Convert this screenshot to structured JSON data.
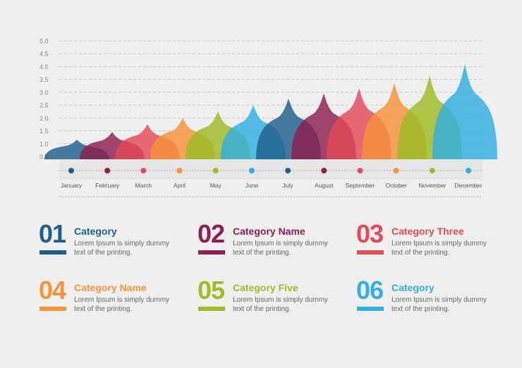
{
  "chart_data": {
    "type": "area",
    "title": "",
    "xlabel": "",
    "ylabel": "",
    "ylim": [
      0,
      5
    ],
    "y_ticks": [
      "0.5",
      "1.0",
      "1.5",
      "2.0",
      "2.5",
      "3.0",
      "3.5",
      "4.0",
      "4.5",
      "5.0"
    ],
    "grid": true,
    "categories": [
      "January",
      "February",
      "March",
      "April",
      "May",
      "June",
      "July",
      "August",
      "September",
      "October",
      "November",
      "December"
    ],
    "values": [
      1.15,
      1.45,
      1.75,
      2.0,
      2.25,
      2.5,
      2.75,
      2.95,
      3.15,
      3.35,
      3.65,
      4.1
    ],
    "colors": [
      "#1e5f8b",
      "#8e1f4f",
      "#e34b57",
      "#f7933a",
      "#9ebc24",
      "#33afe1",
      "#1e5f8b",
      "#8e1f4f",
      "#e34b57",
      "#f7933a",
      "#9ebc24",
      "#33afe1"
    ]
  },
  "legend": [
    {
      "number": "01",
      "title": "Category",
      "text": "Lorem Ipsum is simply dummy text of the printing.",
      "color": "#1e5f8b"
    },
    {
      "number": "02",
      "title": "Category Name",
      "text": "Lorem Ipsum is simply dummy text of the printing.",
      "color": "#8e1f4f"
    },
    {
      "number": "03",
      "title": "Category Three",
      "text": "Lorem Ipsum is simply dummy text of the printing.",
      "color": "#e34b57"
    },
    {
      "number": "04",
      "title": "Category Name",
      "text": "Lorem Ipsum is simply dummy text of the printing.",
      "color": "#f7933a"
    },
    {
      "number": "05",
      "title": "Category Five",
      "text": "Lorem Ipsum is simply dummy text of the printing.",
      "color": "#9ebc24"
    },
    {
      "number": "06",
      "title": "Category",
      "text": "Lorem Ipsum is simply dummy text of the printing.",
      "color": "#33afe1"
    }
  ]
}
